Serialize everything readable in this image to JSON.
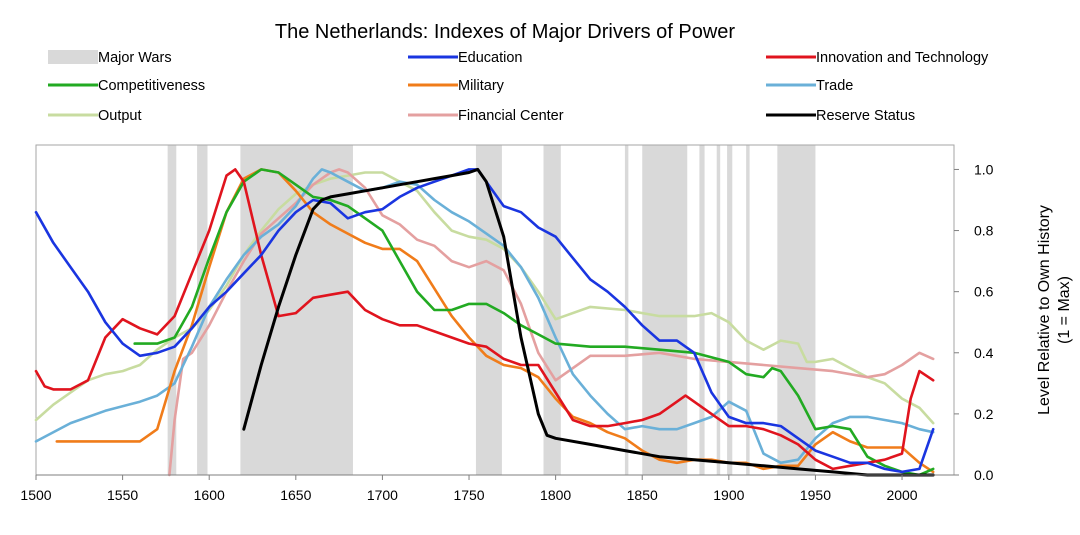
{
  "chart_data": {
    "type": "line",
    "title": "The Netherlands: Indexes of Major Drivers of Power",
    "xlabel": "",
    "ylabel": "Level Relative to Own History",
    "ylabel_sub": "(1 = Max)",
    "xlim": [
      1500,
      2030
    ],
    "ylim": [
      0,
      1.08
    ],
    "x_ticks": [
      1500,
      1550,
      1600,
      1650,
      1700,
      1750,
      1800,
      1850,
      1900,
      1950,
      2000
    ],
    "y_ticks": [
      0.0,
      0.2,
      0.4,
      0.6,
      0.8,
      1.0
    ],
    "y_tick_labels": [
      "0.0",
      "0.2",
      "0.4",
      "0.6",
      "0.8",
      "1.0"
    ],
    "y_axis_side": "right",
    "legend_placement": "top",
    "grid": false,
    "wars_label": "Major Wars",
    "wars_color": "#d9d9d9",
    "wars": [
      [
        1576,
        1581
      ],
      [
        1593,
        1599
      ],
      [
        1618,
        1683
      ],
      [
        1754,
        1769
      ],
      [
        1793,
        1803
      ],
      [
        1840,
        1842
      ],
      [
        1850,
        1876
      ],
      [
        1883,
        1886
      ],
      [
        1893,
        1895
      ],
      [
        1899,
        1902
      ],
      [
        1910,
        1912
      ],
      [
        1928,
        1950
      ]
    ],
    "series": [
      {
        "name": "Education",
        "color": "#1a35e0",
        "x": [
          1500,
          1510,
          1520,
          1530,
          1540,
          1550,
          1560,
          1570,
          1580,
          1590,
          1600,
          1610,
          1620,
          1630,
          1640,
          1650,
          1660,
          1670,
          1680,
          1690,
          1700,
          1710,
          1720,
          1730,
          1740,
          1750,
          1755,
          1760,
          1770,
          1780,
          1790,
          1800,
          1810,
          1820,
          1830,
          1840,
          1850,
          1860,
          1870,
          1880,
          1890,
          1900,
          1910,
          1920,
          1930,
          1940,
          1950,
          1960,
          1970,
          1980,
          1990,
          2000,
          2010,
          2018
        ],
        "y": [
          0.86,
          0.76,
          0.68,
          0.6,
          0.5,
          0.43,
          0.39,
          0.4,
          0.42,
          0.48,
          0.55,
          0.6,
          0.66,
          0.72,
          0.8,
          0.86,
          0.9,
          0.89,
          0.84,
          0.86,
          0.87,
          0.91,
          0.94,
          0.96,
          0.98,
          1.0,
          1.0,
          0.96,
          0.88,
          0.86,
          0.81,
          0.78,
          0.71,
          0.64,
          0.6,
          0.55,
          0.49,
          0.44,
          0.44,
          0.4,
          0.27,
          0.19,
          0.17,
          0.17,
          0.16,
          0.12,
          0.08,
          0.06,
          0.04,
          0.04,
          0.02,
          0.01,
          0.02,
          0.15
        ]
      },
      {
        "name": "Innovation and Technology",
        "color": "#e0141e",
        "x": [
          1500,
          1505,
          1510,
          1520,
          1530,
          1540,
          1550,
          1560,
          1570,
          1580,
          1590,
          1600,
          1610,
          1615,
          1620,
          1630,
          1640,
          1650,
          1660,
          1670,
          1680,
          1690,
          1700,
          1710,
          1720,
          1730,
          1740,
          1750,
          1760,
          1770,
          1780,
          1790,
          1800,
          1810,
          1820,
          1830,
          1840,
          1850,
          1860,
          1870,
          1875,
          1880,
          1890,
          1900,
          1910,
          1920,
          1930,
          1940,
          1950,
          1960,
          1970,
          1980,
          1990,
          2000,
          2005,
          2010,
          2018
        ],
        "y": [
          0.34,
          0.29,
          0.28,
          0.28,
          0.31,
          0.45,
          0.51,
          0.48,
          0.46,
          0.52,
          0.66,
          0.8,
          0.98,
          1.0,
          0.96,
          0.72,
          0.52,
          0.53,
          0.58,
          0.59,
          0.6,
          0.54,
          0.51,
          0.49,
          0.49,
          0.47,
          0.45,
          0.43,
          0.42,
          0.38,
          0.36,
          0.36,
          0.27,
          0.18,
          0.16,
          0.16,
          0.17,
          0.18,
          0.2,
          0.24,
          0.26,
          0.24,
          0.2,
          0.16,
          0.16,
          0.15,
          0.13,
          0.1,
          0.05,
          0.02,
          0.03,
          0.04,
          0.05,
          0.07,
          0.25,
          0.34,
          0.31
        ]
      },
      {
        "name": "Competitiveness",
        "color": "#22aa22",
        "x": [
          1557,
          1570,
          1580,
          1590,
          1600,
          1610,
          1620,
          1630,
          1640,
          1650,
          1660,
          1670,
          1680,
          1690,
          1700,
          1710,
          1720,
          1730,
          1740,
          1750,
          1760,
          1770,
          1780,
          1790,
          1800,
          1820,
          1840,
          1860,
          1880,
          1900,
          1910,
          1920,
          1925,
          1930,
          1940,
          1950,
          1960,
          1970,
          1980,
          1990,
          2000,
          2010,
          2018
        ],
        "y": [
          0.43,
          0.43,
          0.45,
          0.55,
          0.71,
          0.86,
          0.96,
          1.0,
          0.99,
          0.95,
          0.91,
          0.9,
          0.88,
          0.84,
          0.8,
          0.7,
          0.6,
          0.54,
          0.54,
          0.56,
          0.56,
          0.53,
          0.49,
          0.46,
          0.43,
          0.42,
          0.42,
          0.41,
          0.4,
          0.37,
          0.33,
          0.32,
          0.35,
          0.34,
          0.26,
          0.15,
          0.16,
          0.15,
          0.06,
          0.03,
          0.01,
          0.0,
          0.02
        ]
      },
      {
        "name": "Military",
        "color": "#f07c1a",
        "x": [
          1512,
          1530,
          1550,
          1560,
          1570,
          1580,
          1590,
          1600,
          1610,
          1620,
          1630,
          1640,
          1650,
          1660,
          1670,
          1680,
          1690,
          1700,
          1710,
          1720,
          1730,
          1740,
          1750,
          1760,
          1770,
          1780,
          1790,
          1800,
          1810,
          1820,
          1830,
          1840,
          1850,
          1860,
          1870,
          1880,
          1890,
          1900,
          1910,
          1920,
          1930,
          1940,
          1950,
          1960,
          1970,
          1980,
          1990,
          2000,
          2010,
          2018
        ],
        "y": [
          0.11,
          0.11,
          0.11,
          0.11,
          0.15,
          0.34,
          0.49,
          0.68,
          0.86,
          0.97,
          1.0,
          0.99,
          0.93,
          0.86,
          0.82,
          0.79,
          0.76,
          0.74,
          0.74,
          0.7,
          0.61,
          0.52,
          0.45,
          0.39,
          0.36,
          0.35,
          0.32,
          0.25,
          0.19,
          0.17,
          0.14,
          0.12,
          0.08,
          0.05,
          0.04,
          0.05,
          0.05,
          0.04,
          0.04,
          0.02,
          0.03,
          0.03,
          0.1,
          0.14,
          0.11,
          0.09,
          0.09,
          0.09,
          0.04,
          0.01
        ]
      },
      {
        "name": "Trade",
        "color": "#6ab0d8",
        "x": [
          1500,
          1520,
          1540,
          1560,
          1570,
          1580,
          1590,
          1600,
          1610,
          1620,
          1630,
          1640,
          1650,
          1660,
          1665,
          1670,
          1680,
          1690,
          1700,
          1710,
          1720,
          1730,
          1740,
          1750,
          1760,
          1770,
          1780,
          1790,
          1800,
          1810,
          1820,
          1830,
          1840,
          1850,
          1860,
          1870,
          1880,
          1890,
          1900,
          1910,
          1920,
          1930,
          1940,
          1950,
          1960,
          1970,
          1980,
          1990,
          2000,
          2010,
          2018
        ],
        "y": [
          0.11,
          0.17,
          0.21,
          0.24,
          0.26,
          0.3,
          0.42,
          0.55,
          0.64,
          0.72,
          0.78,
          0.82,
          0.88,
          0.97,
          1.0,
          0.99,
          0.96,
          0.93,
          0.94,
          0.96,
          0.95,
          0.9,
          0.86,
          0.83,
          0.79,
          0.75,
          0.68,
          0.58,
          0.45,
          0.33,
          0.26,
          0.2,
          0.15,
          0.16,
          0.15,
          0.15,
          0.17,
          0.19,
          0.24,
          0.21,
          0.07,
          0.04,
          0.05,
          0.12,
          0.17,
          0.19,
          0.19,
          0.18,
          0.17,
          0.15,
          0.14
        ]
      },
      {
        "name": "Output",
        "color": "#c8dca0",
        "x": [
          1500,
          1510,
          1520,
          1530,
          1540,
          1550,
          1560,
          1570,
          1580,
          1590,
          1600,
          1610,
          1620,
          1630,
          1640,
          1650,
          1660,
          1670,
          1680,
          1690,
          1700,
          1710,
          1720,
          1730,
          1740,
          1750,
          1760,
          1770,
          1780,
          1790,
          1800,
          1820,
          1840,
          1860,
          1880,
          1890,
          1900,
          1910,
          1920,
          1930,
          1940,
          1945,
          1950,
          1960,
          1970,
          1980,
          1990,
          2000,
          2010,
          2018
        ],
        "y": [
          0.18,
          0.23,
          0.27,
          0.31,
          0.33,
          0.34,
          0.36,
          0.41,
          0.45,
          0.48,
          0.54,
          0.62,
          0.72,
          0.8,
          0.87,
          0.92,
          0.95,
          0.97,
          0.98,
          0.99,
          0.99,
          0.96,
          0.93,
          0.86,
          0.8,
          0.78,
          0.77,
          0.74,
          0.68,
          0.6,
          0.51,
          0.55,
          0.54,
          0.52,
          0.52,
          0.53,
          0.5,
          0.44,
          0.41,
          0.44,
          0.43,
          0.37,
          0.37,
          0.38,
          0.35,
          0.32,
          0.3,
          0.25,
          0.22,
          0.17
        ]
      },
      {
        "name": "Financial Center",
        "color": "#e4a0a0",
        "x": [
          1577,
          1580,
          1585,
          1590,
          1600,
          1610,
          1620,
          1630,
          1640,
          1650,
          1660,
          1670,
          1675,
          1680,
          1690,
          1700,
          1710,
          1720,
          1730,
          1740,
          1750,
          1760,
          1770,
          1780,
          1790,
          1800,
          1820,
          1840,
          1860,
          1880,
          1900,
          1920,
          1940,
          1960,
          1980,
          1990,
          2000,
          2010,
          2018
        ],
        "y": [
          0.0,
          0.18,
          0.38,
          0.4,
          0.49,
          0.6,
          0.7,
          0.79,
          0.84,
          0.89,
          0.95,
          0.99,
          1.0,
          0.99,
          0.94,
          0.85,
          0.82,
          0.77,
          0.75,
          0.7,
          0.68,
          0.7,
          0.67,
          0.56,
          0.4,
          0.31,
          0.39,
          0.39,
          0.4,
          0.38,
          0.37,
          0.36,
          0.35,
          0.34,
          0.32,
          0.33,
          0.36,
          0.4,
          0.38
        ]
      },
      {
        "name": "Reserve Status",
        "color": "#000000",
        "x": [
          1620,
          1630,
          1640,
          1650,
          1660,
          1665,
          1670,
          1680,
          1690,
          1700,
          1710,
          1720,
          1730,
          1740,
          1750,
          1755,
          1760,
          1770,
          1780,
          1790,
          1795,
          1800,
          1820,
          1840,
          1860,
          1880,
          1900,
          1920,
          1940,
          1960,
          1980,
          2000,
          2018
        ],
        "y": [
          0.15,
          0.36,
          0.55,
          0.72,
          0.87,
          0.9,
          0.91,
          0.92,
          0.93,
          0.94,
          0.95,
          0.96,
          0.97,
          0.98,
          0.99,
          1.0,
          0.96,
          0.78,
          0.45,
          0.2,
          0.13,
          0.12,
          0.1,
          0.08,
          0.06,
          0.05,
          0.04,
          0.03,
          0.02,
          0.01,
          0.0,
          0.0,
          0.0
        ]
      }
    ]
  }
}
